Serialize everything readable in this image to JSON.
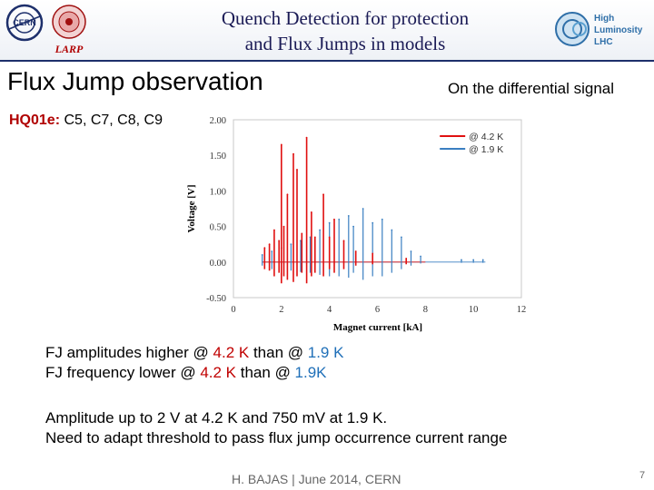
{
  "header": {
    "title_line1": "Quench Detection for protection",
    "title_line2": "and Flux Jumps in models",
    "logos": {
      "cern": "CERN",
      "larp": "LARP",
      "hl_line1": "High",
      "hl_line2": "Luminosity",
      "hl_line3": "LHC"
    }
  },
  "slide": {
    "title": "Flux Jump observation",
    "side_note": "On the differential signal",
    "magnet_label": "HQ01e:",
    "coils": "C5, C7, C8, C9"
  },
  "bullets": {
    "line1": {
      "a": "FJ amplitudes higher @ ",
      "b": "4.2 K",
      "c": " than @ ",
      "d": "1.9 K"
    },
    "line2": {
      "a": "FJ frequency lower @ ",
      "b": "4.2 K",
      "c": " than @ ",
      "d": "1.9K"
    }
  },
  "amplitude": {
    "line1": "Amplitude up to 2 V at 4.2 K and 750 mV at 1.9 K.",
    "line2": "Need to adapt threshold to pass flux jump occurrence current range"
  },
  "footer": {
    "author": "H. BAJAS | June 2014, CERN",
    "page": "7"
  },
  "colors": {
    "red_series": "#e01010",
    "blue_series": "#3a7fc1",
    "title_blue": "#1a1a55",
    "hq_red": "#b00000"
  },
  "chart_data": {
    "type": "line",
    "title": "",
    "xlabel": "Magnet current [kA]",
    "ylabel": "Voltage [V]",
    "xlim": [
      0,
      12
    ],
    "ylim": [
      -0.5,
      2.0
    ],
    "xticks": [
      "0",
      "2",
      "4",
      "6",
      "8",
      "10",
      "12"
    ],
    "yticks": [
      "2.00",
      "1.50",
      "1.00",
      "0.50",
      "0.00",
      "-0.50"
    ],
    "grid": false,
    "legend_position": "top-right",
    "series": [
      {
        "name": "@ 4.2 K",
        "color": "#e01010",
        "spikes": [
          [
            1.3,
            0.2,
            -0.1
          ],
          [
            1.5,
            0.25,
            -0.12
          ],
          [
            1.7,
            0.45,
            -0.2
          ],
          [
            1.9,
            0.3,
            -0.15
          ],
          [
            2.0,
            1.65,
            -0.3
          ],
          [
            2.1,
            0.5,
            -0.2
          ],
          [
            2.25,
            0.95,
            -0.25
          ],
          [
            2.5,
            1.52,
            -0.28
          ],
          [
            2.65,
            1.3,
            -0.2
          ],
          [
            2.85,
            0.4,
            -0.15
          ],
          [
            3.05,
            1.75,
            -0.3
          ],
          [
            3.25,
            0.7,
            -0.2
          ],
          [
            3.4,
            0.35,
            -0.15
          ],
          [
            3.75,
            0.95,
            -0.2
          ],
          [
            4.0,
            0.35,
            -0.1
          ],
          [
            4.2,
            0.6,
            -0.15
          ],
          [
            4.6,
            0.3,
            -0.1
          ],
          [
            5.1,
            0.15,
            -0.05
          ],
          [
            5.8,
            0.12,
            -0.03
          ],
          [
            7.2,
            0.05,
            -0.03
          ]
        ]
      },
      {
        "name": "@ 1.9 K",
        "color": "#3a7fc1",
        "spikes": [
          [
            1.2,
            0.1,
            -0.05
          ],
          [
            1.6,
            0.15,
            -0.1
          ],
          [
            2.0,
            0.2,
            -0.1
          ],
          [
            2.4,
            0.25,
            -0.12
          ],
          [
            2.8,
            0.3,
            -0.14
          ],
          [
            3.2,
            0.35,
            -0.15
          ],
          [
            3.6,
            0.45,
            -0.18
          ],
          [
            4.0,
            0.55,
            -0.2
          ],
          [
            4.4,
            0.6,
            -0.2
          ],
          [
            4.8,
            0.65,
            -0.22
          ],
          [
            5.0,
            0.5,
            -0.15
          ],
          [
            5.4,
            0.75,
            -0.25
          ],
          [
            5.8,
            0.55,
            -0.2
          ],
          [
            6.2,
            0.6,
            -0.2
          ],
          [
            6.6,
            0.45,
            -0.15
          ],
          [
            7.0,
            0.35,
            -0.1
          ],
          [
            7.4,
            0.15,
            -0.05
          ],
          [
            7.8,
            0.08,
            -0.02
          ],
          [
            9.5,
            0.03,
            -0.01
          ],
          [
            10.0,
            0.03,
            -0.01
          ],
          [
            10.4,
            0.03,
            -0.01
          ]
        ]
      }
    ]
  }
}
